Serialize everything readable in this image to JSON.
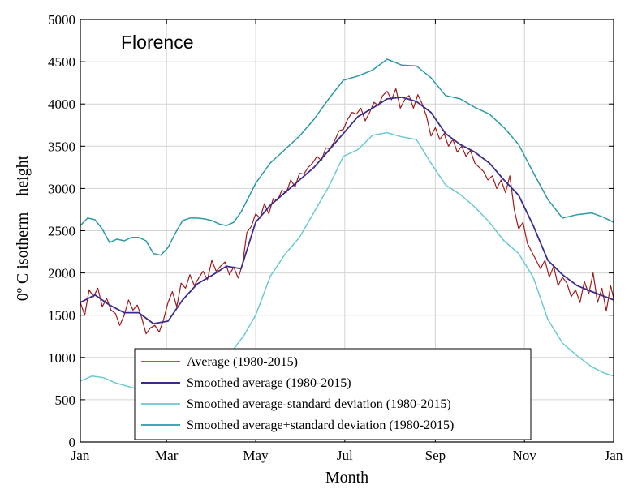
{
  "chart_data": {
    "type": "line",
    "title": "Florence",
    "xlabel": "Month",
    "ylabel": "0º C isotherm    height",
    "x_tick_labels": [
      "Jan",
      "Mar",
      "May",
      "Jul",
      "Sep",
      "Nov",
      "Jan"
    ],
    "x_ticks_days": [
      0,
      59,
      120,
      181,
      243,
      304,
      365
    ],
    "xlim": [
      0,
      365
    ],
    "ylim": [
      0,
      5000
    ],
    "y_ticks": [
      0,
      500,
      1000,
      1500,
      2000,
      2500,
      3000,
      3500,
      4000,
      4500,
      5000
    ],
    "grid": true,
    "legend_position": "bottom-center",
    "series": [
      {
        "name": "Average (1980-2015)",
        "color": "#a01a1a",
        "width": 1.2,
        "x": [
          0,
          3,
          6,
          9,
          12,
          15,
          18,
          21,
          24,
          27,
          30,
          33,
          36,
          39,
          42,
          45,
          48,
          51,
          54,
          57,
          60,
          63,
          66,
          69,
          72,
          75,
          78,
          81,
          84,
          87,
          90,
          93,
          96,
          99,
          102,
          105,
          108,
          111,
          114,
          117,
          120,
          123,
          126,
          129,
          132,
          135,
          138,
          141,
          144,
          147,
          150,
          153,
          156,
          159,
          162,
          165,
          168,
          171,
          174,
          177,
          180,
          183,
          186,
          189,
          192,
          195,
          198,
          201,
          204,
          207,
          210,
          213,
          216,
          219,
          222,
          225,
          228,
          231,
          234,
          237,
          240,
          243,
          246,
          249,
          252,
          255,
          258,
          261,
          264,
          267,
          270,
          273,
          276,
          279,
          282,
          285,
          288,
          291,
          294,
          297,
          300,
          303,
          306,
          309,
          312,
          315,
          318,
          321,
          324,
          327,
          330,
          333,
          336,
          339,
          342,
          345,
          348,
          351,
          354,
          357,
          360,
          363,
          365
        ],
        "values": [
          1650,
          1500,
          1800,
          1720,
          1820,
          1600,
          1700,
          1560,
          1520,
          1380,
          1500,
          1680,
          1560,
          1620,
          1470,
          1280,
          1350,
          1380,
          1300,
          1450,
          1650,
          1780,
          1600,
          1880,
          1820,
          1980,
          1850,
          1940,
          2020,
          1920,
          2150,
          2020,
          2080,
          2130,
          1980,
          2070,
          1940,
          2100,
          2480,
          2550,
          2700,
          2650,
          2820,
          2700,
          2880,
          2860,
          2980,
          2950,
          3100,
          3020,
          3180,
          3170,
          3250,
          3300,
          3380,
          3330,
          3480,
          3470,
          3560,
          3680,
          3700,
          3820,
          3900,
          3880,
          3950,
          3800,
          3900,
          4020,
          3980,
          4100,
          4150,
          4050,
          4180,
          3950,
          4050,
          4100,
          3950,
          4110,
          4000,
          3850,
          3620,
          3720,
          3580,
          3650,
          3500,
          3580,
          3430,
          3500,
          3380,
          3450,
          3300,
          3250,
          3200,
          3100,
          3150,
          3000,
          3100,
          2950,
          3150,
          2750,
          2520,
          2600,
          2350,
          2250,
          2150,
          2050,
          2150,
          1950,
          2080,
          1850,
          1950,
          1880,
          1720,
          1800,
          1650,
          1900,
          1750,
          2000,
          1650,
          1820,
          1550,
          1850,
          1700
        ]
      },
      {
        "name": "Smoothed average (1980-2015)",
        "color": "#3a2c8e",
        "width": 1.8,
        "x": [
          0,
          10,
          20,
          30,
          40,
          50,
          60,
          70,
          80,
          90,
          100,
          110,
          120,
          130,
          140,
          150,
          160,
          170,
          180,
          190,
          200,
          210,
          220,
          230,
          240,
          250,
          260,
          270,
          280,
          290,
          300,
          310,
          320,
          330,
          340,
          350,
          365
        ],
        "values": [
          1650,
          1740,
          1620,
          1530,
          1530,
          1400,
          1430,
          1680,
          1870,
          1970,
          2080,
          2050,
          2600,
          2800,
          2950,
          3100,
          3250,
          3450,
          3650,
          3850,
          3950,
          4060,
          4080,
          4030,
          3900,
          3650,
          3520,
          3430,
          3300,
          3100,
          2920,
          2560,
          2150,
          1980,
          1850,
          1780,
          1680
        ]
      },
      {
        "name": "Smoothed average-standard deviation (1980-2015)",
        "color": "#6ccad2",
        "width": 1.5,
        "x": [
          0,
          8,
          16,
          24,
          32,
          40,
          48,
          56,
          64,
          72,
          80,
          88,
          96,
          104,
          112,
          120,
          130,
          140,
          150,
          160,
          170,
          180,
          190,
          200,
          210,
          220,
          230,
          240,
          250,
          260,
          270,
          280,
          290,
          300,
          310,
          320,
          330,
          340,
          350,
          358,
          365
        ],
        "values": [
          720,
          780,
          760,
          700,
          660,
          620,
          540,
          460,
          470,
          560,
          640,
          760,
          920,
          1080,
          1260,
          1500,
          1960,
          2220,
          2420,
          2720,
          3020,
          3380,
          3460,
          3630,
          3660,
          3610,
          3580,
          3300,
          3040,
          2930,
          2780,
          2600,
          2380,
          2230,
          1950,
          1450,
          1170,
          1020,
          890,
          820,
          780
        ]
      },
      {
        "name": "Smoothed average+standard deviation (1980-2015)",
        "color": "#2b9aa6",
        "width": 1.5,
        "x": [
          0,
          5,
          10,
          15,
          20,
          25,
          30,
          35,
          40,
          45,
          50,
          55,
          60,
          65,
          70,
          75,
          80,
          85,
          90,
          95,
          100,
          105,
          110,
          120,
          130,
          140,
          150,
          160,
          170,
          180,
          190,
          200,
          210,
          220,
          230,
          240,
          250,
          260,
          270,
          280,
          290,
          300,
          310,
          320,
          330,
          340,
          350,
          358,
          365
        ],
        "values": [
          2560,
          2650,
          2630,
          2520,
          2360,
          2400,
          2380,
          2420,
          2420,
          2380,
          2230,
          2210,
          2300,
          2470,
          2620,
          2650,
          2650,
          2640,
          2620,
          2580,
          2560,
          2600,
          2720,
          3060,
          3300,
          3460,
          3620,
          3820,
          4060,
          4280,
          4330,
          4400,
          4530,
          4460,
          4450,
          4310,
          4100,
          4060,
          3960,
          3880,
          3720,
          3520,
          3190,
          2870,
          2650,
          2690,
          2710,
          2660,
          2600
        ]
      }
    ]
  }
}
